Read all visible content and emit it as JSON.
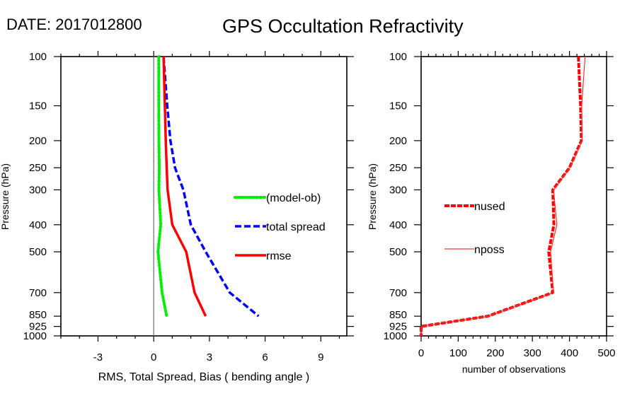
{
  "header": {
    "date_label": "DATE: 2017012800",
    "title": "GPS Occultation Refractivity"
  },
  "chart_data": [
    {
      "type": "line",
      "title": "",
      "xlabel": "RMS, Total Spread, Bias ( bending angle )",
      "ylabel": "Pressure (hPa)",
      "xlim": [
        -5,
        10.4
      ],
      "ylim": [
        1000,
        100
      ],
      "yscale": "log",
      "x_ticks": [
        -3,
        0,
        3,
        6,
        9
      ],
      "x_tick_labels": [
        "-3",
        "0",
        "3",
        "6",
        "9"
      ],
      "x_minor_step": 1,
      "y_ticks": [
        100,
        150,
        200,
        250,
        300,
        400,
        500,
        700,
        850,
        925,
        1000
      ],
      "y_tick_labels": [
        "100",
        "150",
        "200",
        "250",
        "300",
        "400",
        "500",
        "700",
        "850",
        "925",
        "1000"
      ],
      "zero_line": 0,
      "legend_position": "center-right",
      "series": [
        {
          "name": "(model-ob)",
          "color": "#00ee00",
          "style": "dotted",
          "pressure": [
            100,
            150,
            200,
            250,
            300,
            400,
            500,
            700,
            850
          ],
          "values": [
            0.27,
            0.27,
            0.28,
            0.3,
            0.28,
            0.38,
            0.23,
            0.45,
            0.7
          ]
        },
        {
          "name": "total spread",
          "color": "#0000ff",
          "style": "dashed",
          "pressure": [
            100,
            150,
            200,
            250,
            300,
            400,
            500,
            700,
            850
          ],
          "values": [
            0.53,
            0.73,
            0.9,
            1.15,
            1.6,
            2.0,
            2.8,
            4.1,
            5.65
          ]
        },
        {
          "name": "rmse",
          "color": "#ff0000",
          "style": "solid",
          "pressure": [
            100,
            150,
            200,
            250,
            300,
            400,
            500,
            700,
            850
          ],
          "values": [
            0.53,
            0.6,
            0.65,
            0.7,
            0.75,
            1.0,
            1.75,
            2.2,
            2.8
          ]
        }
      ]
    },
    {
      "type": "line",
      "title": "",
      "xlabel": "number of observations",
      "ylabel": "Pressure (hPa)",
      "xlim": [
        0,
        500
      ],
      "ylim": [
        1000,
        100
      ],
      "yscale": "log",
      "x_ticks": [
        0,
        100,
        200,
        300,
        400,
        500
      ],
      "x_tick_labels": [
        "0",
        "100",
        "200",
        "300",
        "400",
        "500"
      ],
      "x_minor_step": 20,
      "y_ticks": [
        100,
        150,
        200,
        250,
        300,
        400,
        500,
        700,
        850,
        925,
        1000
      ],
      "y_tick_labels": [
        "100",
        "150",
        "200",
        "250",
        "300",
        "400",
        "500",
        "700",
        "850",
        "925",
        "1000"
      ],
      "legend_position": "center-left",
      "series": [
        {
          "name": "nused",
          "color": "#ff0000",
          "style": "dashed-thick",
          "pressure": [
            100,
            150,
            200,
            250,
            300,
            400,
            500,
            700,
            850,
            925,
            1000
          ],
          "values": [
            424,
            430,
            432,
            400,
            355,
            358,
            344,
            355,
            180,
            0,
            0
          ]
        },
        {
          "name": "nposs",
          "color": "#ff3030",
          "style": "solid-thin",
          "pressure": [
            100,
            150,
            200,
            250,
            300,
            400,
            500,
            700,
            850,
            925,
            1000
          ],
          "values": [
            442,
            433,
            434,
            401,
            357,
            366,
            349,
            357,
            181,
            0,
            0
          ]
        }
      ]
    }
  ]
}
